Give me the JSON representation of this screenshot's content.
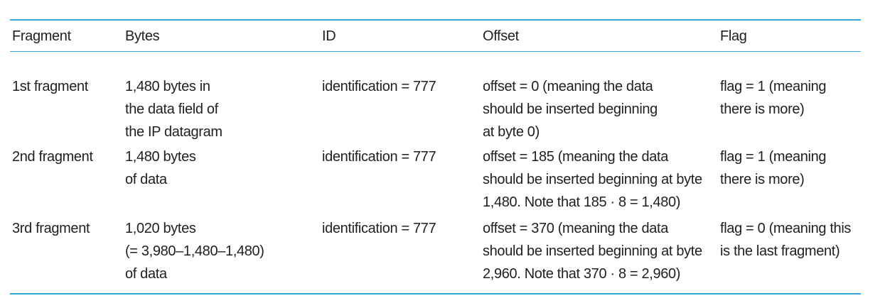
{
  "table": {
    "headers": {
      "fragment": "Fragment",
      "bytes": "Bytes",
      "id": "ID",
      "offset": "Offset",
      "flag": "Flag"
    },
    "rows": [
      {
        "fragment": "1st fragment",
        "bytes": [
          "1,480 bytes in",
          "the data field of",
          "the IP datagram"
        ],
        "id": "identification = 777",
        "offset": [
          "offset = 0 (meaning the data",
          "should be inserted beginning",
          "at byte 0)"
        ],
        "flag": [
          "flag = 1 (meaning",
          "there is more)"
        ]
      },
      {
        "fragment": "2nd fragment",
        "bytes": [
          "1,480 bytes",
          "of data"
        ],
        "id": "identification = 777",
        "offset": [
          "offset = 185 (meaning the data",
          "should be inserted beginning at byte",
          "1,480. Note that 185 · 8 = 1,480)"
        ],
        "flag": [
          "flag = 1 (meaning",
          "there is more)"
        ]
      },
      {
        "fragment": "3rd fragment",
        "bytes": [
          "1,020 bytes",
          "(= 3,980–1,480–1,480)",
          "of data"
        ],
        "id": "identification = 777",
        "offset": [
          "offset = 370 (meaning the data",
          "should be inserted beginning at byte",
          "2,960. Note that 370 · 8 = 2,960)"
        ],
        "flag": [
          "flag = 0 (meaning this",
          "is the last fragment)"
        ]
      }
    ]
  },
  "colors": {
    "rule": "#3aa7d8",
    "text": "#1f1f1f"
  }
}
